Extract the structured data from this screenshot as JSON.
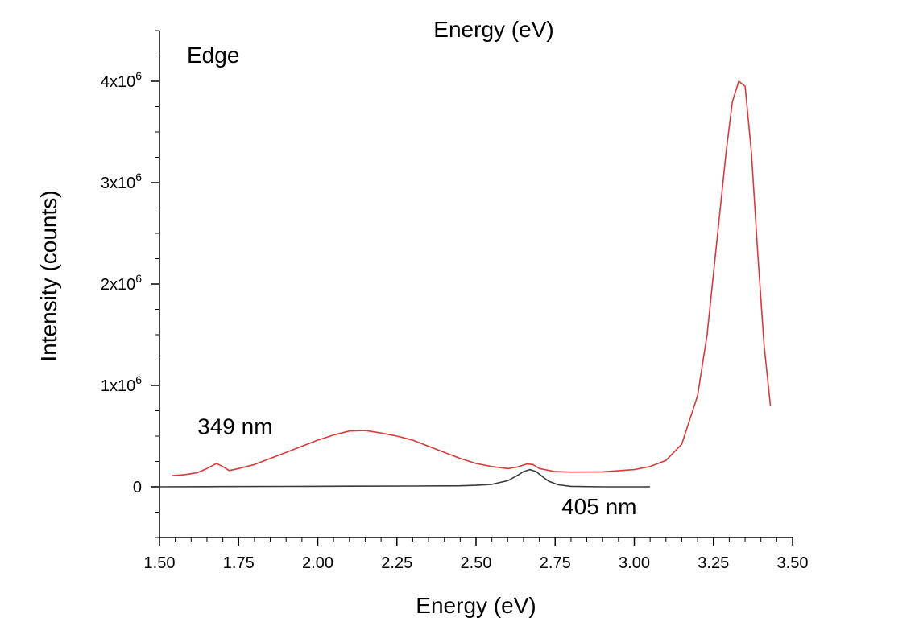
{
  "chart_data": {
    "type": "line",
    "title": "Energy (eV)",
    "xlabel": "Energy (eV)",
    "ylabel": "Intensity (counts)",
    "panel_label": "Edge",
    "xlim": [
      1.5,
      3.5
    ],
    "ylim": [
      -500000,
      4500000
    ],
    "x_ticks": [
      {
        "value": 1.5,
        "label": "1.50"
      },
      {
        "value": 1.75,
        "label": "1.75"
      },
      {
        "value": 2.0,
        "label": "2.00"
      },
      {
        "value": 2.25,
        "label": "2.25"
      },
      {
        "value": 2.5,
        "label": "2.50"
      },
      {
        "value": 2.75,
        "label": "2.75"
      },
      {
        "value": 3.0,
        "label": "3.00"
      },
      {
        "value": 3.25,
        "label": "3.25"
      },
      {
        "value": 3.5,
        "label": "3.50"
      }
    ],
    "y_ticks": [
      {
        "value": 0,
        "label": "0",
        "exp": ""
      },
      {
        "value": 1000000,
        "label": "1x10",
        "exp": "6"
      },
      {
        "value": 2000000,
        "label": "2x10",
        "exp": "6"
      },
      {
        "value": 3000000,
        "label": "3x10",
        "exp": "6"
      },
      {
        "value": 4000000,
        "label": "4x10",
        "exp": "6"
      }
    ],
    "annotations": [
      {
        "text": "349 nm",
        "x": 1.62,
        "y": 520000
      },
      {
        "text": "405 nm",
        "x": 2.77,
        "y": -270000
      }
    ],
    "series": [
      {
        "name": "349 nm",
        "color": "#d93a3a",
        "x": [
          1.54,
          1.58,
          1.62,
          1.65,
          1.68,
          1.7,
          1.72,
          1.75,
          1.8,
          1.85,
          1.9,
          1.95,
          2.0,
          2.05,
          2.1,
          2.15,
          2.2,
          2.25,
          2.3,
          2.35,
          2.4,
          2.45,
          2.5,
          2.55,
          2.6,
          2.63,
          2.66,
          2.68,
          2.7,
          2.75,
          2.8,
          2.9,
          3.0,
          3.05,
          3.1,
          3.15,
          3.2,
          3.23,
          3.26,
          3.29,
          3.31,
          3.33,
          3.35,
          3.37,
          3.39,
          3.41,
          3.43
        ],
        "y": [
          110000,
          120000,
          140000,
          180000,
          230000,
          200000,
          160000,
          180000,
          220000,
          280000,
          340000,
          400000,
          460000,
          510000,
          550000,
          555000,
          530000,
          500000,
          460000,
          400000,
          340000,
          280000,
          230000,
          200000,
          180000,
          195000,
          225000,
          220000,
          180000,
          150000,
          145000,
          148000,
          170000,
          200000,
          260000,
          420000,
          900000,
          1500000,
          2400000,
          3300000,
          3800000,
          4000000,
          3950000,
          3300000,
          2300000,
          1400000,
          800000
        ]
      },
      {
        "name": "405 nm",
        "color": "#3a3a3a",
        "x": [
          1.5,
          1.7,
          1.9,
          2.1,
          2.3,
          2.45,
          2.5,
          2.55,
          2.6,
          2.63,
          2.65,
          2.67,
          2.69,
          2.71,
          2.73,
          2.76,
          2.8,
          2.9,
          3.0,
          3.05
        ],
        "y": [
          0,
          2000,
          4000,
          6000,
          8000,
          10000,
          15000,
          25000,
          60000,
          110000,
          150000,
          170000,
          150000,
          100000,
          55000,
          20000,
          5000,
          0,
          0,
          0
        ]
      }
    ]
  }
}
